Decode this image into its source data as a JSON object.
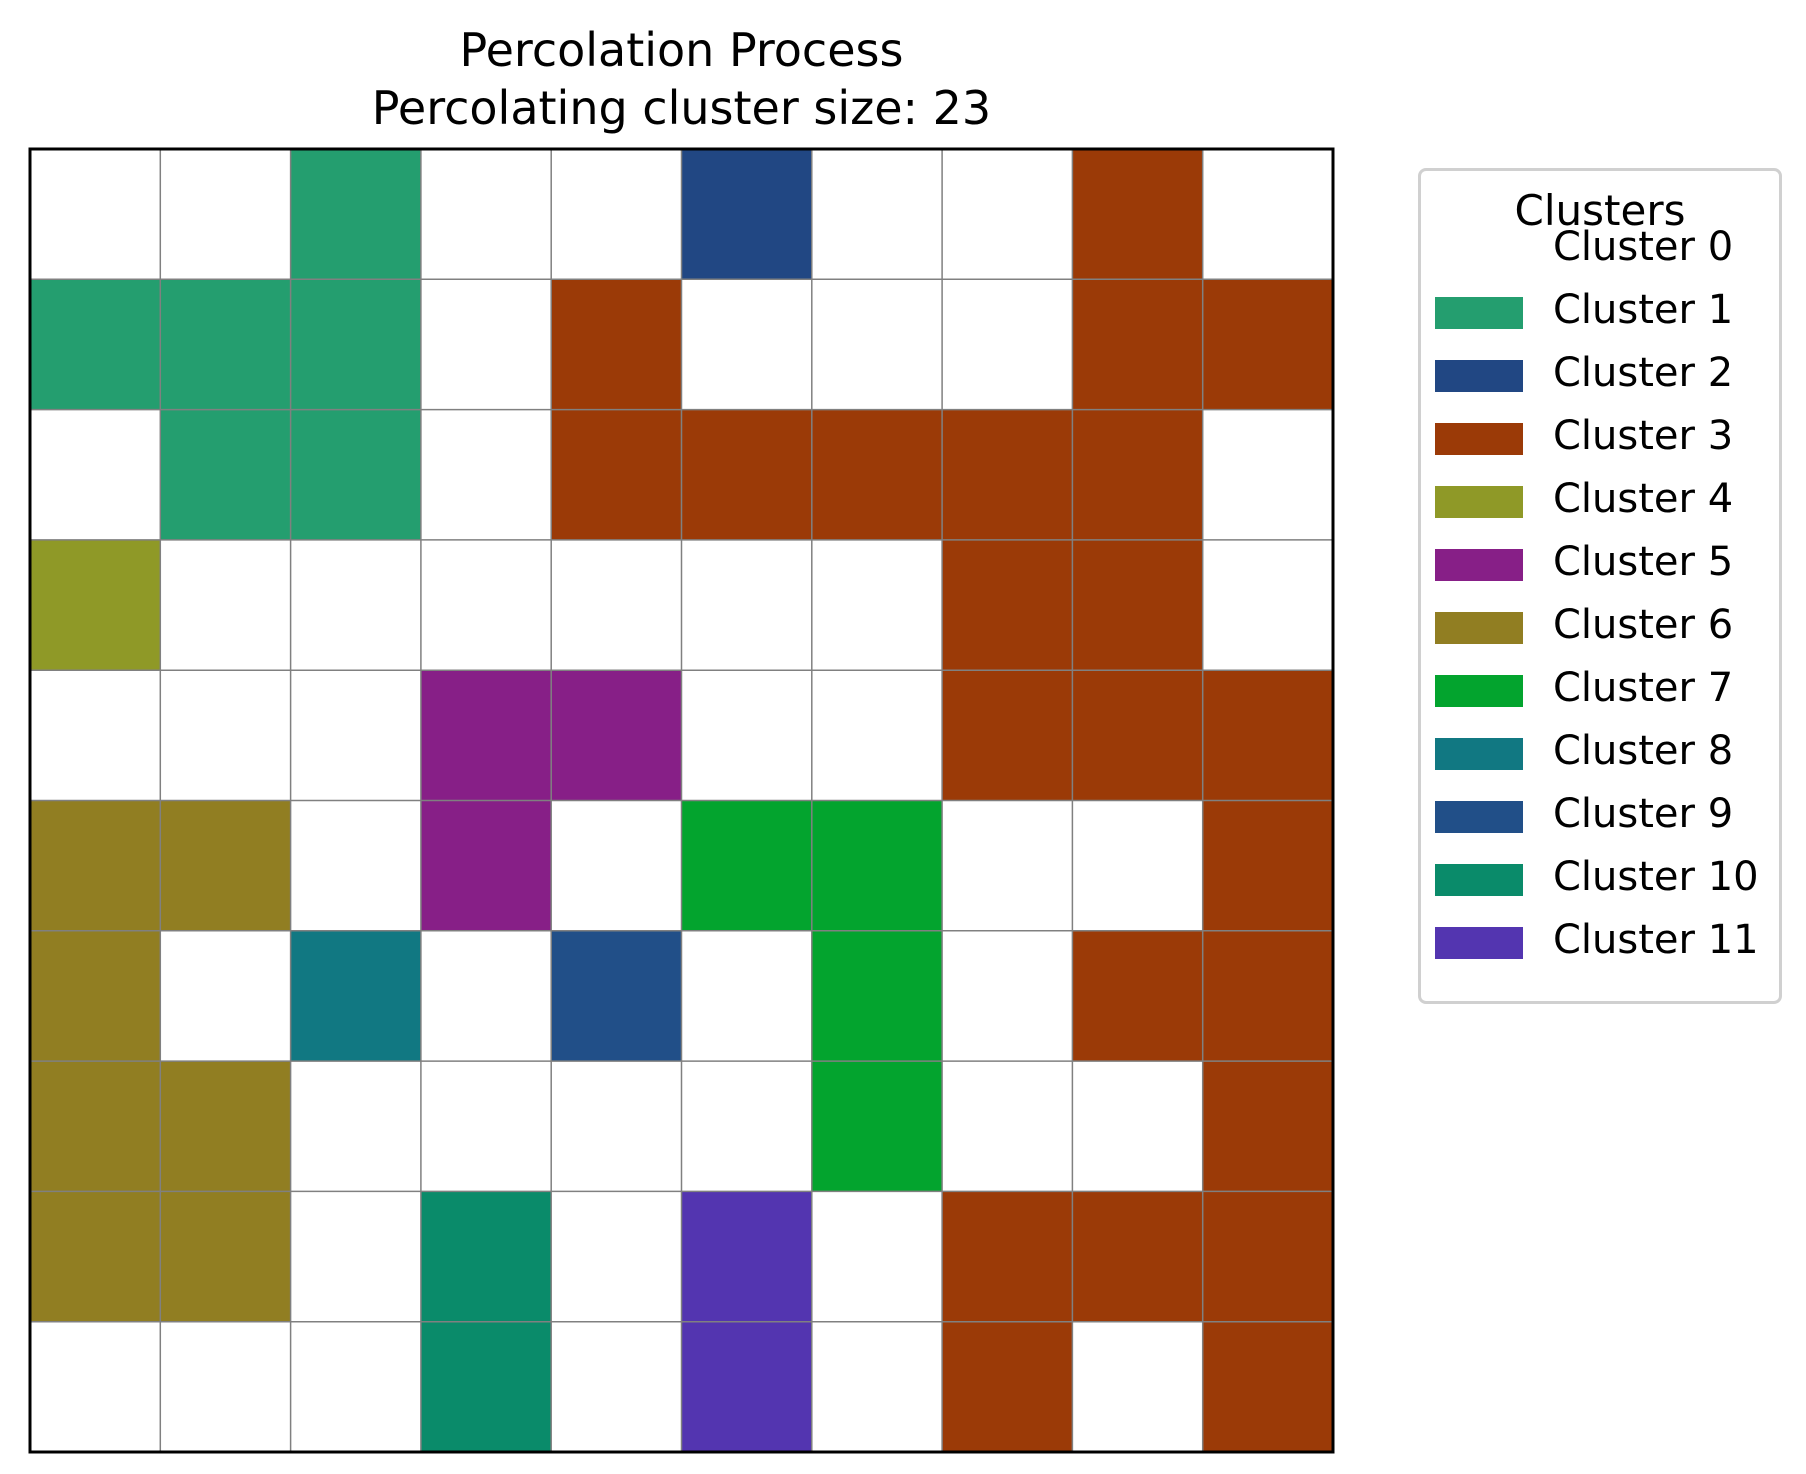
{
  "chart_data": {
    "type": "heatmap",
    "title": "Percolation Process",
    "subtitle": "Percolating cluster size: 23",
    "grid_lines": true,
    "legend_placement": "outside-right",
    "legend": {
      "title": "Clusters",
      "items": [
        {
          "label": "Cluster 0",
          "color": "#ffffff"
        },
        {
          "label": "Cluster 1",
          "color": "#249e6f"
        },
        {
          "label": "Cluster 2",
          "color": "#214783"
        },
        {
          "label": "Cluster 3",
          "color": "#9b3a07"
        },
        {
          "label": "Cluster 4",
          "color": "#8f9927"
        },
        {
          "label": "Cluster 5",
          "color": "#871f87"
        },
        {
          "label": "Cluster 6",
          "color": "#917e22"
        },
        {
          "label": "Cluster 7",
          "color": "#03a42e"
        },
        {
          "label": "Cluster 8",
          "color": "#117882"
        },
        {
          "label": "Cluster 9",
          "color": "#214f88"
        },
        {
          "label": "Cluster 10",
          "color": "#0a8b6a"
        },
        {
          "label": "Cluster 11",
          "color": "#5335b0"
        }
      ]
    },
    "rows": 10,
    "cols": 10,
    "cells": [
      [
        0,
        0,
        1,
        0,
        0,
        2,
        0,
        0,
        3,
        0
      ],
      [
        1,
        1,
        1,
        0,
        3,
        0,
        0,
        0,
        3,
        3
      ],
      [
        0,
        1,
        1,
        0,
        3,
        3,
        3,
        3,
        3,
        0
      ],
      [
        4,
        0,
        0,
        0,
        0,
        0,
        0,
        3,
        3,
        0
      ],
      [
        0,
        0,
        0,
        5,
        5,
        0,
        0,
        3,
        3,
        3
      ],
      [
        6,
        6,
        0,
        5,
        0,
        7,
        7,
        0,
        0,
        3
      ],
      [
        6,
        0,
        8,
        0,
        9,
        0,
        7,
        0,
        3,
        3
      ],
      [
        6,
        6,
        0,
        0,
        0,
        0,
        7,
        0,
        0,
        3
      ],
      [
        6,
        6,
        0,
        10,
        0,
        11,
        0,
        3,
        3,
        3
      ],
      [
        0,
        0,
        0,
        10,
        0,
        11,
        0,
        3,
        0,
        3
      ]
    ]
  }
}
